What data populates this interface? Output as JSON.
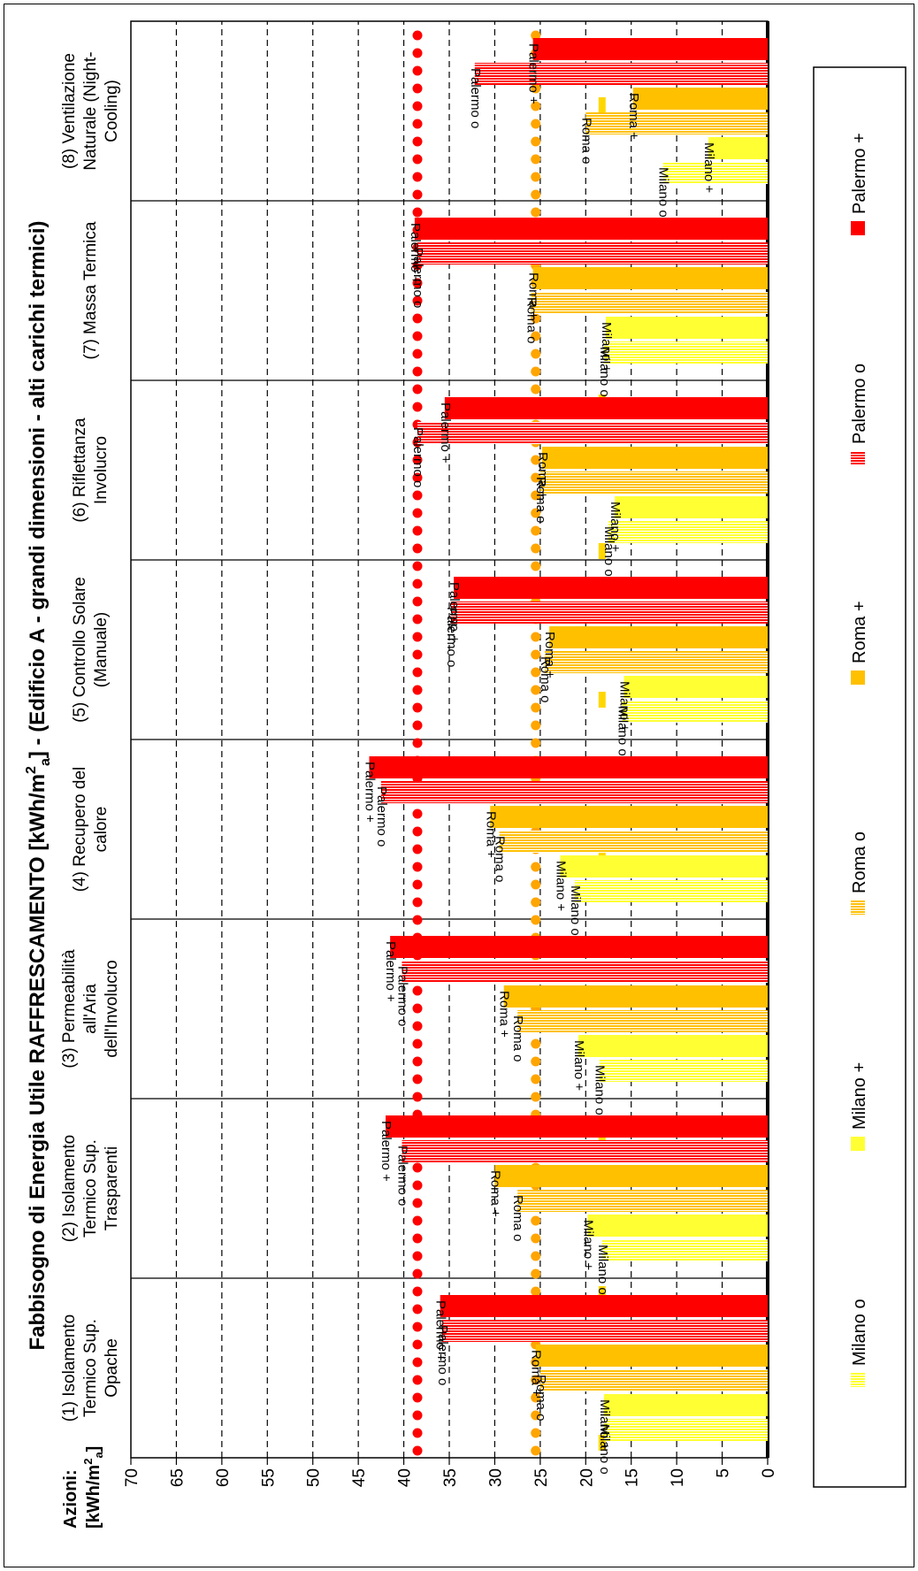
{
  "chart_data": {
    "type": "bar",
    "orientation": "horizontal",
    "title": "Fabbisogno di Energia Utile RAFFRESCAMENTO  [kWh/m²a]   -   (Edificio A - grandi dimensioni - alti carichi termici)",
    "title_parts": {
      "main": "Fabbisogno di Energia Utile RAFFRESCAMENTO  [kWh/m",
      "sup": "2",
      "sub": "a",
      "end": "]   -   (Edificio A - grandi dimensioni - alti carichi termici)"
    },
    "axis_prefix": "Azioni:",
    "unit_parts": {
      "main": "[kWh/m",
      "sup": "2",
      "sub": "a",
      "end": "]"
    },
    "xlim": [
      0,
      70
    ],
    "ticks": [
      0,
      5,
      10,
      15,
      20,
      25,
      30,
      35,
      40,
      45,
      50,
      55,
      60,
      65,
      70
    ],
    "grid": "dashed vertical",
    "legend_position": "bottom",
    "categories": [
      {
        "lines": [
          "(1) Isolamento",
          "Termico Sup.",
          "Opache"
        ]
      },
      {
        "lines": [
          "(2) Isolamento",
          "Termico Sup.",
          "Trasparenti"
        ]
      },
      {
        "lines": [
          "(3) Permeabilità",
          "all'Aria",
          "dell'Involucro"
        ]
      },
      {
        "lines": [
          "(4) Recupero del",
          "calore"
        ]
      },
      {
        "lines": [
          "(5) Controllo Solare",
          "(Manuale)"
        ]
      },
      {
        "lines": [
          "(6) Riflettanza",
          "Involucro"
        ]
      },
      {
        "lines": [
          "(7) Massa Termica"
        ]
      },
      {
        "lines": [
          "(8) Ventilazione",
          "Naturale    (Night-",
          "Cooling)"
        ]
      }
    ],
    "series": [
      {
        "name": "Milano o",
        "bar_label": "Milano o",
        "color": "#FFFF33",
        "pattern": "striped",
        "values": [
          18.0,
          18.2,
          18.5,
          21.2,
          16.0,
          17.5,
          18.0,
          11.5
        ]
      },
      {
        "name": "Milano +",
        "bar_label": "Milano +",
        "color": "#FFFF33",
        "pattern": "solid",
        "values": [
          18.0,
          19.8,
          20.8,
          22.8,
          15.8,
          16.8,
          17.8,
          6.5
        ]
      },
      {
        "name": "Roma o",
        "bar_label": "Roma o",
        "color": "#FFC000",
        "pattern": "striped",
        "values": [
          25.0,
          27.5,
          27.5,
          29.5,
          24.5,
          25.0,
          26.0,
          20.0
        ]
      },
      {
        "name": "Roma +",
        "bar_label": "Roma +",
        "color": "#FFC000",
        "pattern": "solid",
        "values": [
          25.5,
          30.0,
          29.0,
          30.5,
          24.0,
          24.8,
          25.8,
          14.8
        ]
      },
      {
        "name": "Palermo o",
        "bar_label": "Palermo o",
        "color": "#FF0000",
        "pattern": "striped",
        "values": [
          35.8,
          40.2,
          40.2,
          42.5,
          34.8,
          38.5,
          38.5,
          32.2
        ]
      },
      {
        "name": "Palermo +",
        "bar_label": "Palermo +",
        "color": "#FF0000",
        "pattern": "solid",
        "values": [
          36.0,
          42.0,
          41.5,
          43.8,
          34.5,
          35.5,
          38.8,
          25.8
        ]
      }
    ],
    "reference_lines": [
      {
        "value": 38.5,
        "color": "#FF0000",
        "style": "dotted"
      },
      {
        "value": 25.5,
        "color": "#FFA500",
        "style": "dotted"
      },
      {
        "value": 18.2,
        "color": "#FFD700",
        "style": "dashed"
      }
    ]
  }
}
